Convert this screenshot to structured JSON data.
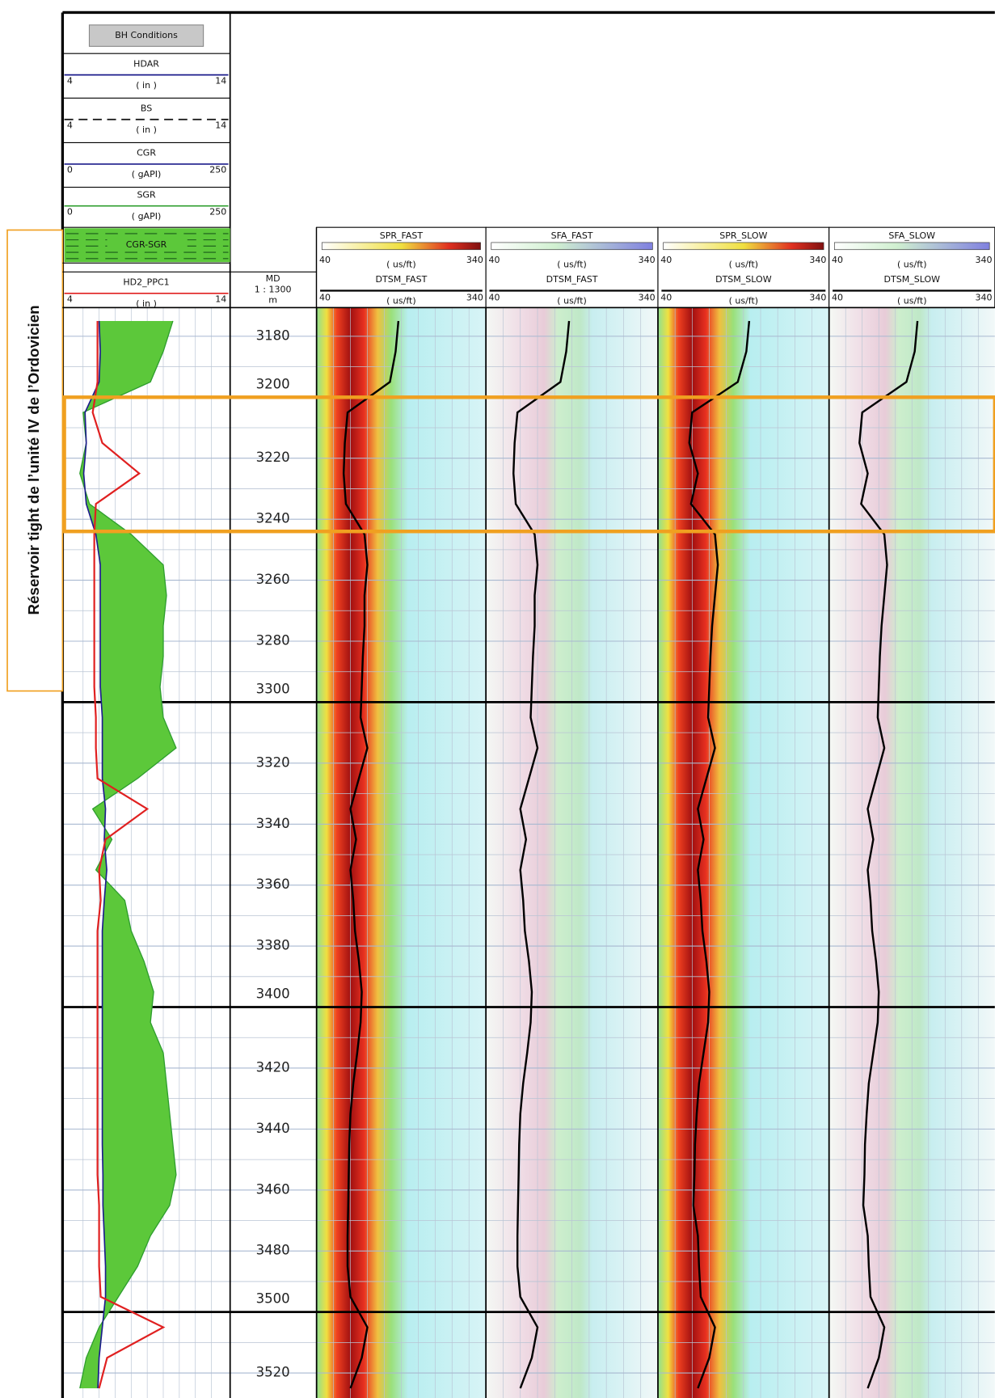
{
  "chart_data": {
    "type": "well-log",
    "annotation": "Réservoir tight de l’unité IV de l’Ordovicien",
    "header": {
      "bh_conditions": "BH Conditions",
      "curves": [
        {
          "name": "HDAR",
          "unit": "( in )",
          "min": 4,
          "max": 14,
          "color": "#1c1c8c",
          "dashed": false
        },
        {
          "name": "BS",
          "unit": "( in )",
          "min": 4,
          "max": 14,
          "color": "#111111",
          "dashed": true
        },
        {
          "name": "CGR",
          "unit": "( gAPI)",
          "min": 0,
          "max": 250,
          "color": "#1c1c8c",
          "dashed": false
        },
        {
          "name": "SGR",
          "unit": "( gAPI)",
          "min": 0,
          "max": 250,
          "color": "#2e9e2e",
          "dashed": false
        }
      ],
      "fill": {
        "name": "CGR-SGR",
        "color": "#5cc83a"
      },
      "hd2": {
        "name": "HD2_PPC1",
        "unit": "( in )",
        "min": 4,
        "max": 14,
        "color": "#e02020"
      }
    },
    "depth_header": {
      "label": "MD",
      "scale": "1 : 1300",
      "unit": "m"
    },
    "tracks": [
      {
        "image": "SPR_FAST",
        "curve": "DTSM_FAST",
        "unit": "( us/ft)",
        "min": 40,
        "max": 340,
        "kind": "spr"
      },
      {
        "image": "SFA_FAST",
        "curve": "DTSM_FAST",
        "unit": "( us/ft)",
        "min": 40,
        "max": 340,
        "kind": "sfa"
      },
      {
        "image": "SPR_SLOW",
        "curve": "DTSM_SLOW",
        "unit": "( us/ft)",
        "min": 40,
        "max": 340,
        "kind": "spr"
      },
      {
        "image": "SFA_SLOW",
        "curve": "DTSM_SLOW",
        "unit": "( us/ft)",
        "min": 40,
        "max": 340,
        "kind": "sfa"
      }
    ],
    "ylim": [
      3170.6,
      3528.2
    ],
    "yticks": [
      3180,
      3200,
      3220,
      3240,
      3260,
      3280,
      3300,
      3320,
      3340,
      3360,
      3380,
      3400,
      3420,
      3440,
      3460,
      3480,
      3500,
      3520
    ],
    "reservoir": [
      3200,
      3244
    ],
    "logs": {
      "depth": [
        3175,
        3185,
        3195,
        3205,
        3215,
        3225,
        3235,
        3245,
        3255,
        3265,
        3275,
        3285,
        3295,
        3305,
        3315,
        3325,
        3335,
        3345,
        3355,
        3365,
        3375,
        3385,
        3395,
        3405,
        3415,
        3425,
        3435,
        3445,
        3455,
        3465,
        3475,
        3485,
        3495,
        3505,
        3515,
        3525
      ],
      "HD2_PPC1": [
        5.9,
        5.9,
        5.9,
        5.6,
        6.2,
        8.5,
        5.8,
        5.7,
        5.7,
        5.7,
        5.7,
        5.7,
        5.7,
        5.8,
        5.8,
        5.9,
        9.0,
        6.4,
        6.0,
        6.1,
        5.9,
        5.9,
        5.9,
        5.9,
        5.9,
        5.9,
        5.9,
        5.9,
        5.9,
        6.0,
        6.0,
        6.0,
        6.1,
        10.0,
        6.5,
        6.0
      ],
      "CGR": [
        50,
        52,
        50,
        28,
        30,
        26,
        30,
        45,
        52,
        52,
        52,
        52,
        52,
        55,
        55,
        55,
        60,
        58,
        62,
        58,
        55,
        55,
        55,
        55,
        55,
        55,
        55,
        55,
        56,
        56,
        58,
        60,
        60,
        55,
        50,
        48
      ],
      "SGR": [
        165,
        150,
        130,
        25,
        30,
        20,
        35,
        100,
        150,
        155,
        150,
        150,
        145,
        150,
        170,
        110,
        40,
        70,
        45,
        90,
        100,
        120,
        135,
        130,
        150,
        155,
        160,
        165,
        170,
        160,
        130,
        110,
        80,
        50,
        30,
        20
      ],
      "DTSM_FAST": [
        185,
        180,
        170,
        95,
        90,
        88,
        92,
        125,
        130,
        125,
        125,
        122,
        120,
        118,
        130,
        115,
        100,
        110,
        100,
        105,
        108,
        115,
        120,
        118,
        112,
        105,
        100,
        98,
        97,
        96,
        95,
        95,
        100,
        130,
        120,
        100
      ],
      "DTSM_SLOW": [
        200,
        195,
        180,
        100,
        95,
        110,
        98,
        140,
        145,
        140,
        135,
        132,
        130,
        128,
        140,
        125,
        110,
        120,
        110,
        115,
        118,
        125,
        130,
        128,
        120,
        112,
        108,
        105,
        104,
        102,
        110,
        112,
        115,
        140,
        130,
        110
      ]
    }
  }
}
